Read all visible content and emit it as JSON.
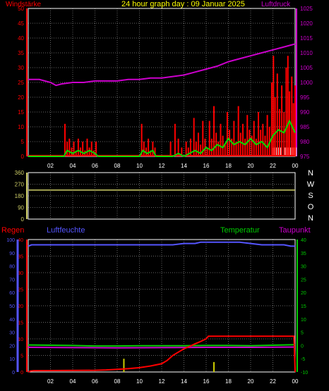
{
  "header": {
    "left_label": "Windstärke",
    "title": "24 hour graph day : 09 Januar 2025",
    "right_label": "Luftdruck"
  },
  "colors": {
    "wind": "#ff0000",
    "gust": "#ff0000",
    "wind_avg": "#00dd00",
    "pressure": "#cc00cc",
    "frame": "#ffffff",
    "grid": "#666666",
    "direction": "#cccc66",
    "humidity": "#5555ff",
    "temperature": "#00cc00",
    "dewpoint": "#cc00cc",
    "rain": "#ff0000",
    "rain_rate": "#cccc00",
    "tick_left_top": "#ff0000",
    "tick_right_top": "#cc00cc",
    "tick_dir": "#cccc66",
    "tick_rain": "#ff0000",
    "tick_hum": "#5555ff",
    "tick_temp": "#00cc00"
  },
  "chart_data": [
    {
      "type": "line",
      "name": "wind-pressure",
      "x_ticks": [
        "02",
        "04",
        "06",
        "08",
        "10",
        "12",
        "14",
        "16",
        "18",
        "20",
        "22",
        "00"
      ],
      "left_axis": {
        "label": "Windstärke",
        "ticks": [
          0,
          5,
          10,
          15,
          20,
          25,
          30,
          35,
          40,
          45,
          50
        ],
        "ylim": [
          0,
          50
        ]
      },
      "right_axis": {
        "label": "Luftdruck",
        "ticks": [
          975,
          980,
          985,
          990,
          995,
          1000,
          1005,
          1010,
          1015,
          1020,
          1025
        ],
        "ylim": [
          975,
          1025
        ]
      },
      "grid": true,
      "series": [
        {
          "name": "Luftdruck",
          "axis": "right",
          "x": [
            0,
            1,
            2,
            2.5,
            3,
            4,
            5,
            6,
            7,
            8,
            9,
            10,
            11,
            12,
            13,
            14,
            15,
            16,
            17,
            18,
            19,
            20,
            21,
            22,
            23,
            24
          ],
          "y": [
            1001,
            1001,
            1000,
            999,
            999.5,
            1000,
            1000,
            1000.5,
            1000.5,
            1000.5,
            1001,
            1001,
            1001.5,
            1001.5,
            1002,
            1002.5,
            1003.5,
            1004.5,
            1005.5,
            1007,
            1008,
            1009,
            1010,
            1011,
            1012,
            1013
          ]
        }
      ],
      "wind_bursts": [
        [
          3.3,
          11
        ],
        [
          3.5,
          5
        ],
        [
          3.7,
          6
        ],
        [
          3.9,
          3
        ],
        [
          4.1,
          5
        ],
        [
          4.3,
          2
        ],
        [
          4.5,
          6
        ],
        [
          4.7,
          3
        ],
        [
          4.9,
          5
        ],
        [
          5.1,
          2
        ],
        [
          5.3,
          6
        ],
        [
          5.5,
          3
        ],
        [
          5.7,
          5
        ],
        [
          5.9,
          2
        ],
        [
          6.1,
          5
        ],
        [
          10.2,
          11
        ],
        [
          10.4,
          5
        ],
        [
          10.6,
          3
        ],
        [
          10.8,
          6
        ],
        [
          11,
          2
        ],
        [
          11.2,
          5
        ],
        [
          11.4,
          3
        ],
        [
          12.8,
          5
        ],
        [
          13.2,
          11
        ],
        [
          13.5,
          6
        ],
        [
          13.8,
          3
        ],
        [
          14.2,
          5
        ],
        [
          14.4,
          3
        ],
        [
          14.6,
          6
        ],
        [
          14.9,
          13
        ],
        [
          15.1,
          5
        ],
        [
          15.3,
          8
        ],
        [
          15.5,
          4
        ],
        [
          15.7,
          12
        ],
        [
          15.9,
          6
        ],
        [
          16.1,
          3
        ],
        [
          16.3,
          12
        ],
        [
          16.5,
          6
        ],
        [
          16.7,
          17
        ],
        [
          16.9,
          8
        ],
        [
          17.1,
          5
        ],
        [
          17.3,
          11
        ],
        [
          17.5,
          7
        ],
        [
          17.7,
          4
        ],
        [
          17.9,
          15
        ],
        [
          18.1,
          9
        ],
        [
          18.3,
          6
        ],
        [
          18.5,
          12
        ],
        [
          18.7,
          5
        ],
        [
          18.9,
          17
        ],
        [
          19.1,
          8
        ],
        [
          19.3,
          11
        ],
        [
          19.5,
          6
        ],
        [
          19.7,
          14
        ],
        [
          19.9,
          9
        ],
        [
          20.1,
          7
        ],
        [
          20.3,
          12
        ],
        [
          20.5,
          6
        ],
        [
          20.7,
          15
        ],
        [
          20.9,
          9
        ],
        [
          21.1,
          11
        ],
        [
          21.3,
          7
        ],
        [
          21.5,
          14
        ],
        [
          21.7,
          10
        ],
        [
          21.9,
          25
        ],
        [
          22.05,
          34
        ],
        [
          22.2,
          20
        ],
        [
          22.4,
          28
        ],
        [
          22.6,
          16
        ],
        [
          22.8,
          24
        ],
        [
          23,
          15
        ],
        [
          23.2,
          30
        ],
        [
          23.35,
          34
        ],
        [
          23.5,
          22
        ],
        [
          23.7,
          27
        ],
        [
          23.85,
          18
        ],
        [
          24,
          24
        ]
      ],
      "wind_avg": {
        "x": [
          0,
          3.2,
          3.5,
          4,
          4.5,
          5,
          5.5,
          6,
          6.3,
          10,
          10.3,
          10.7,
          11.2,
          11.5,
          13,
          13.5,
          14,
          14.5,
          15,
          15.5,
          16,
          16.5,
          17,
          17.5,
          18,
          18.5,
          19,
          19.5,
          20,
          20.5,
          21,
          21.5,
          22,
          22.5,
          23,
          23.5,
          24
        ],
        "y": [
          0,
          0,
          2,
          1,
          2,
          1,
          2,
          1,
          0,
          0,
          2,
          1,
          2,
          0,
          0,
          1,
          0,
          1,
          2,
          1,
          3,
          2,
          4,
          3,
          6,
          4,
          5,
          4,
          6,
          4,
          5,
          3,
          7,
          9,
          8,
          12,
          8
        ]
      },
      "gray_bars_x": [
        22.1,
        22.4,
        22.7,
        23.1,
        23.3,
        23.55,
        23.8,
        24
      ]
    },
    {
      "type": "line",
      "name": "wind-direction",
      "left_axis": {
        "ticks": [
          0,
          90,
          180,
          270,
          360
        ],
        "ylim": [
          0,
          360
        ]
      },
      "right_axis": {
        "ticks": [
          "N",
          "W",
          "S",
          "O",
          "N"
        ]
      },
      "series": [
        {
          "name": "Windrichtung",
          "x": [
            0,
            24
          ],
          "y": [
            225,
            225
          ]
        }
      ]
    },
    {
      "type": "line",
      "name": "rain-humidity-temperature",
      "labels": {
        "regen": "Regen",
        "luftfeuchte": "Luftfeuchte",
        "temperatur": "Temperatur",
        "taupunkt": "Taupunkt"
      },
      "x_ticks": [
        "02",
        "04",
        "06",
        "08",
        "10",
        "12",
        "14",
        "16",
        "18",
        "20",
        "22",
        "00"
      ],
      "rain_axis": {
        "ticks": [
          0,
          5,
          10,
          15,
          20,
          25,
          30,
          35,
          40
        ],
        "ylim": [
          0,
          40
        ]
      },
      "hum_axis": {
        "ticks": [
          0,
          10,
          20,
          30,
          40,
          50,
          60,
          70,
          80,
          90,
          100
        ],
        "ylim": [
          0,
          100
        ]
      },
      "temp_axis": {
        "ticks": [
          40,
          35,
          30,
          25,
          20,
          15,
          10,
          5,
          0,
          -5,
          -10
        ],
        "ylim": [
          -10,
          40
        ]
      },
      "grid": true,
      "series": [
        {
          "name": "Luftfeuchte",
          "axis": "humidity",
          "x": [
            0,
            0.3,
            1,
            2,
            3,
            4,
            5,
            6,
            7,
            8,
            9,
            10,
            11,
            12,
            13,
            14,
            15,
            15.5,
            16,
            17,
            18,
            19,
            20,
            21,
            22,
            23,
            23.6,
            24
          ],
          "y": [
            95,
            96,
            96,
            96,
            96,
            96,
            96,
            96,
            96,
            96,
            96,
            96,
            96,
            96,
            96,
            97,
            97,
            98,
            98,
            98,
            98,
            98,
            97,
            96,
            96,
            96,
            95,
            95
          ]
        },
        {
          "name": "Temperatur",
          "axis": "temperature",
          "x": [
            0,
            2,
            4,
            6,
            8,
            10,
            12,
            14,
            16,
            18,
            20,
            22,
            24
          ],
          "y": [
            0.2,
            0.1,
            0,
            -0.2,
            -0.2,
            -0.1,
            -0.1,
            -0.1,
            0,
            0,
            -0.1,
            0.1,
            0.3
          ]
        },
        {
          "name": "Taupunkt",
          "axis": "temperature",
          "x": [
            0,
            4,
            8,
            12,
            16,
            20,
            24
          ],
          "y": [
            -0.7,
            -0.8,
            -0.9,
            -0.8,
            -0.7,
            -0.7,
            -0.6
          ]
        },
        {
          "name": "Regen",
          "axis": "rain",
          "x": [
            0,
            0.2,
            0.5,
            6,
            7,
            8,
            9,
            10,
            11,
            12,
            12.5,
            13,
            13.5,
            14,
            14.5,
            15,
            15.5,
            16,
            16.2,
            17,
            18,
            19,
            20,
            21,
            22,
            23,
            23.9,
            24
          ],
          "y": [
            0,
            0.3,
            0.4,
            0.5,
            0.6,
            0.8,
            1,
            1.3,
            1.8,
            2.5,
            3.5,
            5,
            6,
            7,
            7.7,
            8.5,
            9.2,
            10,
            10.8,
            10.8,
            10.8,
            10.8,
            10.8,
            10.8,
            10.8,
            10.8,
            10.8,
            0
          ]
        }
      ],
      "rain_rate_bars": [
        [
          8.6,
          4
        ],
        [
          16.7,
          3
        ]
      ]
    }
  ]
}
